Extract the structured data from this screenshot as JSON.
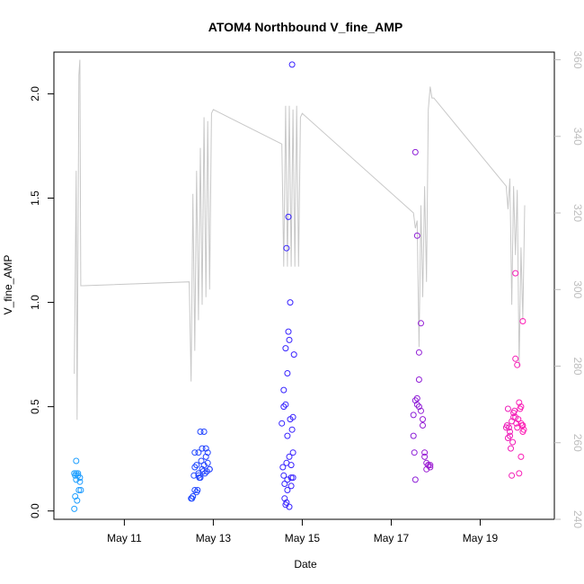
{
  "chart_data": {
    "type": "scatter",
    "title": "ATOM4 Northbound V_fine_AMP",
    "xlabel": "Date",
    "ylabel": "V_fine_AMP",
    "x_ticks": [
      "May 11",
      "May 13",
      "May 15",
      "May 17",
      "May 19"
    ],
    "y_ticks": [
      "0.0",
      "0.5",
      "1.0",
      "1.5",
      "2.0"
    ],
    "y2_ticks": [
      "240",
      "260",
      "280",
      "300",
      "320",
      "340",
      "360"
    ],
    "xlim": [
      "2023-05-09 10:00",
      "2023-05-20 16:00"
    ],
    "ylim": [
      -0.04,
      2.2
    ],
    "y2lim": [
      240,
      362
    ],
    "grid": false,
    "colors": {
      "line": "#c8c8c8",
      "right_axis": "#bdbdbd",
      "points_gradient": [
        "#1ea0ff",
        "#1e4bff",
        "#3a1eff",
        "#8a1ed8",
        "#ff1eb4"
      ]
    },
    "series": [
      {
        "type": "scatter",
        "x": [
          "2023-05-09 21:00",
          "2023-05-09 21:30",
          "2023-05-09 22:00",
          "2023-05-09 22:30",
          "2023-05-09 23:00",
          "2023-05-09 23:30",
          "2023-05-10 00:00",
          "2023-05-10 00:30",
          "2023-05-09 21:00",
          "2023-05-09 21:30",
          "2023-05-09 22:00",
          "2023-05-09 23:00",
          "2023-05-10 00:00",
          "2023-05-09 22:00",
          "2023-05-12 12:00",
          "2023-05-12 12:30",
          "2023-05-12 13:00",
          "2023-05-12 13:30",
          "2023-05-12 14:00",
          "2023-05-12 14:00",
          "2023-05-12 15:00",
          "2023-05-12 15:00",
          "2023-05-12 15:30",
          "2023-05-12 16:00",
          "2023-05-12 16:00",
          "2023-05-12 16:30",
          "2023-05-12 17:00",
          "2023-05-12 17:00",
          "2023-05-12 17:30",
          "2023-05-12 18:00",
          "2023-05-12 18:00",
          "2023-05-12 18:30",
          "2023-05-12 19:00",
          "2023-05-12 19:00",
          "2023-05-12 19:30",
          "2023-05-12 20:00",
          "2023-05-12 20:00",
          "2023-05-12 20:30",
          "2023-05-12 21:00",
          "2023-05-12 21:00",
          "2023-05-12 22:00",
          "2023-05-12 22:00",
          "2023-05-12 14:00",
          "2023-05-12 16:00",
          "2023-05-14 13:00",
          "2023-05-14 13:30",
          "2023-05-14 14:00",
          "2023-05-14 14:00",
          "2023-05-14 14:30",
          "2023-05-14 15:00",
          "2023-05-14 15:00",
          "2023-05-14 15:30",
          "2023-05-14 16:00",
          "2023-05-14 16:00",
          "2023-05-14 16:30",
          "2023-05-14 17:00",
          "2023-05-14 17:00",
          "2023-05-14 17:30",
          "2023-05-14 18:00",
          "2023-05-14 18:00",
          "2023-05-14 18:30",
          "2023-05-14 19:00",
          "2023-05-14 19:00",
          "2023-05-14 19:30",
          "2023-05-14 14:00",
          "2023-05-14 15:00",
          "2023-05-14 16:00",
          "2023-05-14 17:00",
          "2023-05-14 18:00",
          "2023-05-14 19:00",
          "2023-05-14 15:30",
          "2023-05-14 16:30",
          "2023-05-14 17:30",
          "2023-05-14 18:30",
          "2023-05-14 14:30",
          "2023-05-14 15:30",
          "2023-05-14 16:00",
          "2023-05-17 12:00",
          "2023-05-17 12:00",
          "2023-05-17 12:30",
          "2023-05-17 13:00",
          "2023-05-17 13:00",
          "2023-05-17 14:00",
          "2023-05-17 14:00",
          "2023-05-17 15:00",
          "2023-05-17 15:00",
          "2023-05-17 16:00",
          "2023-05-17 16:00",
          "2023-05-17 17:00",
          "2023-05-17 17:00",
          "2023-05-17 18:00",
          "2023-05-17 18:00",
          "2023-05-17 19:00",
          "2023-05-17 19:00",
          "2023-05-17 20:00",
          "2023-05-17 20:00",
          "2023-05-17 21:00",
          "2023-05-17 21:00",
          "2023-05-17 13:00",
          "2023-05-17 14:00",
          "2023-05-17 15:00",
          "2023-05-19 14:00",
          "2023-05-19 14:30",
          "2023-05-19 15:00",
          "2023-05-19 15:30",
          "2023-05-19 16:00",
          "2023-05-19 16:30",
          "2023-05-19 17:00",
          "2023-05-19 17:30",
          "2023-05-19 18:00",
          "2023-05-19 18:30",
          "2023-05-19 19:00",
          "2023-05-19 19:30",
          "2023-05-19 20:00",
          "2023-05-19 20:30",
          "2023-05-19 21:00",
          "2023-05-19 21:30",
          "2023-05-19 22:00",
          "2023-05-19 22:30",
          "2023-05-19 23:00",
          "2023-05-19 23:30",
          "2023-05-19 15:00",
          "2023-05-19 16:00",
          "2023-05-19 17:00",
          "2023-05-19 18:00",
          "2023-05-19 19:00",
          "2023-05-19 20:00",
          "2023-05-19 21:00",
          "2023-05-19 22:00",
          "2023-05-19 23:00",
          "2023-05-19 19:00",
          "2023-05-19 22:00",
          "2023-05-19 23:00"
        ],
        "y": [
          0.01,
          0.07,
          0.18,
          0.05,
          0.18,
          0.1,
          0.14,
          0.1,
          0.18,
          0.17,
          0.24,
          0.17,
          0.16,
          0.15,
          0.06,
          0.06,
          0.07,
          0.17,
          0.1,
          0.28,
          0.09,
          0.22,
          0.1,
          0.18,
          0.28,
          0.16,
          0.38,
          0.16,
          0.24,
          0.3,
          0.2,
          0.19,
          0.38,
          0.22,
          0.18,
          0.3,
          0.26,
          0.19,
          0.28,
          0.23,
          0.2,
          0.2,
          0.21,
          0.17,
          0.42,
          0.21,
          0.58,
          0.17,
          0.06,
          0.51,
          0.03,
          0.23,
          0.1,
          0.15,
          0.86,
          0.02,
          0.26,
          0.44,
          0.16,
          0.22,
          0.39,
          0.28,
          0.45,
          0.75,
          0.5,
          0.78,
          0.66,
          0.82,
          0.12,
          0.16,
          1.26,
          1.41,
          1.0,
          2.14,
          0.13,
          0.04,
          0.36,
          0.36,
          0.46,
          0.28,
          0.15,
          0.53,
          0.51,
          0.54,
          0.5,
          0.63,
          0.48,
          0.9,
          0.41,
          0.44,
          0.28,
          0.26,
          0.23,
          0.2,
          0.22,
          0.22,
          0.22,
          0.21,
          1.72,
          1.32,
          0.76,
          0.4,
          0.41,
          0.49,
          0.4,
          0.38,
          0.3,
          0.17,
          0.33,
          0.47,
          0.48,
          0.45,
          0.42,
          0.4,
          0.44,
          0.52,
          0.49,
          0.42,
          0.41,
          0.38,
          0.39,
          0.35,
          0.36,
          0.43,
          0.45,
          0.73,
          0.7,
          0.18,
          0.26,
          0.91,
          1.14,
          0.5,
          0.41
        ]
      },
      {
        "type": "line",
        "axis": "right",
        "x": [
          "2023-05-09 21:00",
          "2023-05-09 22:00",
          "2023-05-09 22:30",
          "2023-05-09 23:30",
          "2023-05-10 00:00",
          "2023-05-10 00:30",
          "2023-05-10 01:00",
          "2023-05-10 01:30",
          "2023-05-10 02:00",
          "2023-05-12 11:00",
          "2023-05-12 12:00",
          "2023-05-12 13:00",
          "2023-05-12 14:00",
          "2023-05-12 15:00",
          "2023-05-12 16:00",
          "2023-05-12 17:00",
          "2023-05-12 18:00",
          "2023-05-12 19:00",
          "2023-05-12 20:00",
          "2023-05-12 21:00",
          "2023-05-12 22:00",
          "2023-05-12 23:00",
          "2023-05-13 00:00",
          "2023-05-14 13:00",
          "2023-05-14 14:00",
          "2023-05-14 15:00",
          "2023-05-14 16:00",
          "2023-05-14 17:00",
          "2023-05-14 18:00",
          "2023-05-14 19:00",
          "2023-05-14 20:00",
          "2023-05-14 21:00",
          "2023-05-14 22:00",
          "2023-05-14 23:00",
          "2023-05-15 00:00",
          "2023-05-17 12:00",
          "2023-05-17 13:00",
          "2023-05-17 14:00",
          "2023-05-17 15:00",
          "2023-05-17 16:00",
          "2023-05-17 17:00",
          "2023-05-17 18:00",
          "2023-05-17 19:00",
          "2023-05-17 20:00",
          "2023-05-17 21:00",
          "2023-05-17 22:00",
          "2023-05-17 23:00",
          "2023-05-19 14:00",
          "2023-05-19 15:00",
          "2023-05-19 16:00",
          "2023-05-19 17:00",
          "2023-05-19 18:00",
          "2023-05-19 19:00",
          "2023-05-19 20:00",
          "2023-05-19 21:00",
          "2023-05-19 22:00",
          "2023-05-19 23:00",
          "2023-05-20 00:00"
        ],
        "y": [
          278,
          331,
          266,
          356,
          360,
          301,
          301,
          301,
          301,
          302,
          276,
          325,
          284,
          331,
          292,
          337,
          296,
          345,
          298,
          344,
          300,
          346,
          347,
          338,
          306,
          348,
          306,
          348,
          306,
          347,
          306,
          348,
          306,
          345,
          346,
          320,
          316,
          318,
          285,
          322,
          298,
          327,
          302,
          347,
          353,
          350,
          350,
          327,
          321,
          329,
          296,
          327,
          309,
          326,
          280,
          311,
          292,
          322
        ]
      }
    ]
  }
}
